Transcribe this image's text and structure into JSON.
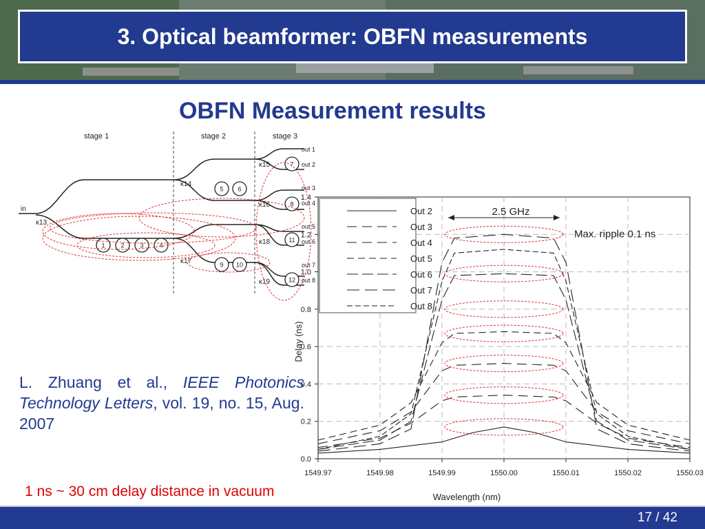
{
  "slide": {
    "title": "3. Optical beamformer: OBFN measurements",
    "subtitle": "OBFN Measurement results",
    "citation": {
      "authors": "L. Zhuang et al., ",
      "journal": "IEEE Photonics Technology Letters",
      "details": ", vol. 19, no. 15, Aug. 2007"
    },
    "note": "1 ns ~ 30 cm delay distance in vacuum",
    "page": "17 / 42"
  },
  "diagram": {
    "stage_labels": [
      "stage 1",
      "stage 2",
      "stage 3"
    ],
    "input_label": "in",
    "ring_numbers": [
      "1",
      "2",
      "3",
      "4",
      "5",
      "6",
      "7",
      "8",
      "9",
      "10",
      "11",
      "12"
    ],
    "outputs": [
      "out 1",
      "out 2",
      "out 3",
      "out 4",
      "out 5",
      "out 6",
      "out 7",
      "out 8"
    ],
    "coupler_labels": [
      "κ13",
      "κ14",
      "κ15",
      "κ16",
      "κ17",
      "κ18",
      "κ19"
    ],
    "colors": {
      "dashed_ellipse": "#e03030",
      "waveguide": "#222222"
    }
  },
  "chart_data": {
    "type": "line",
    "xlabel": "Wavelength (nm)",
    "ylabel": "Delay (ns)",
    "xlim": [
      1549.97,
      1550.03
    ],
    "ylim": [
      0.0,
      1.4
    ],
    "xticks": [
      "1549.97",
      "1549.98",
      "1549.99",
      "1550.00",
      "1550.01",
      "1550.02",
      "1550.03"
    ],
    "yticks": [
      "0.0",
      "0.2",
      "0.4",
      "0.6",
      "0.8",
      "1.0",
      "1.2",
      "1.4"
    ],
    "grid": true,
    "legend_position": "top-left",
    "annotations": [
      "2.5 GHz",
      "Max. ripple 0.1 ns"
    ],
    "series": [
      {
        "name": "Out 2",
        "x": [
          1549.97,
          1549.98,
          1549.99,
          1549.995,
          1550.0,
          1550.005,
          1550.01,
          1550.02,
          1550.03
        ],
        "y": [
          0.03,
          0.05,
          0.09,
          0.14,
          0.17,
          0.14,
          0.09,
          0.05,
          0.03
        ]
      },
      {
        "name": "Out 3",
        "x": [
          1549.97,
          1549.98,
          1549.985,
          1549.99,
          1549.992,
          1550.0,
          1550.008,
          1550.01,
          1550.015,
          1550.02,
          1550.03
        ],
        "y": [
          0.06,
          0.11,
          0.19,
          0.31,
          0.33,
          0.34,
          0.33,
          0.31,
          0.19,
          0.11,
          0.06
        ]
      },
      {
        "name": "Out 4",
        "x": [
          1549.97,
          1549.98,
          1549.985,
          1549.99,
          1549.992,
          1550.0,
          1550.008,
          1550.01,
          1550.015,
          1550.02,
          1550.03
        ],
        "y": [
          0.08,
          0.15,
          0.25,
          0.47,
          0.5,
          0.51,
          0.5,
          0.47,
          0.25,
          0.15,
          0.08
        ]
      },
      {
        "name": "Out 5",
        "x": [
          1549.97,
          1549.98,
          1549.985,
          1549.99,
          1549.992,
          1550.0,
          1550.008,
          1550.01,
          1550.015,
          1550.02,
          1550.03
        ],
        "y": [
          0.1,
          0.18,
          0.3,
          0.62,
          0.67,
          0.68,
          0.67,
          0.62,
          0.3,
          0.18,
          0.1
        ]
      },
      {
        "name": "Out 6",
        "x": [
          1549.97,
          1549.98,
          1549.985,
          1549.99,
          1549.992,
          1550.0,
          1550.008,
          1550.01,
          1550.015,
          1550.02,
          1550.03
        ],
        "y": [
          0.05,
          0.1,
          0.2,
          0.85,
          0.98,
          0.99,
          0.98,
          0.85,
          0.2,
          0.1,
          0.05
        ]
      },
      {
        "name": "Out 7",
        "x": [
          1549.97,
          1549.98,
          1549.985,
          1549.99,
          1549.992,
          1550.0,
          1550.008,
          1550.01,
          1550.015,
          1550.02,
          1550.03
        ],
        "y": [
          0.04,
          0.08,
          0.16,
          1.05,
          1.18,
          1.2,
          1.18,
          1.05,
          0.16,
          0.08,
          0.04
        ]
      },
      {
        "name": "Out 8",
        "x": [
          1549.97,
          1549.98,
          1549.985,
          1549.99,
          1549.992,
          1550.0,
          1550.008,
          1550.01,
          1550.015,
          1550.02,
          1550.03
        ],
        "y": [
          0.05,
          0.12,
          0.24,
          0.95,
          1.1,
          1.12,
          1.1,
          0.95,
          0.24,
          0.12,
          0.05
        ]
      }
    ]
  }
}
